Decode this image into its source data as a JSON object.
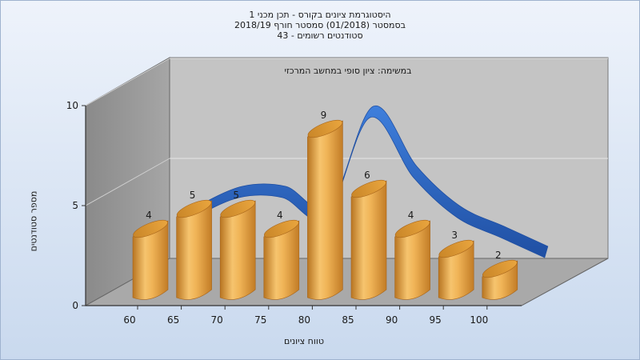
{
  "chart_data": {
    "type": "bar",
    "title": [
      "היסטוגרמת ציונים בקורס - תכן מכני 1",
      "בסמסטר  (01/2018)  סמסטר חורף 2018/19",
      "סטודנטים רשומים - 43"
    ],
    "subtitle": "במשימה: ציון סופי במחשב המרכזי",
    "xlabel": "טווח ציונים",
    "ylabel": "מספר סטודנטים",
    "categories": [
      "60",
      "65",
      "70",
      "75",
      "80",
      "85",
      "90",
      "95",
      "100"
    ],
    "values": [
      4,
      5,
      5,
      4,
      9,
      6,
      4,
      3,
      2
    ],
    "ylim": [
      0,
      10
    ],
    "yticks": [
      "0",
      "5",
      "10"
    ],
    "grid": true,
    "bar_color": "#e8a64a",
    "curve_color": "#2e66c4",
    "background_color": "#dbe7f5"
  }
}
